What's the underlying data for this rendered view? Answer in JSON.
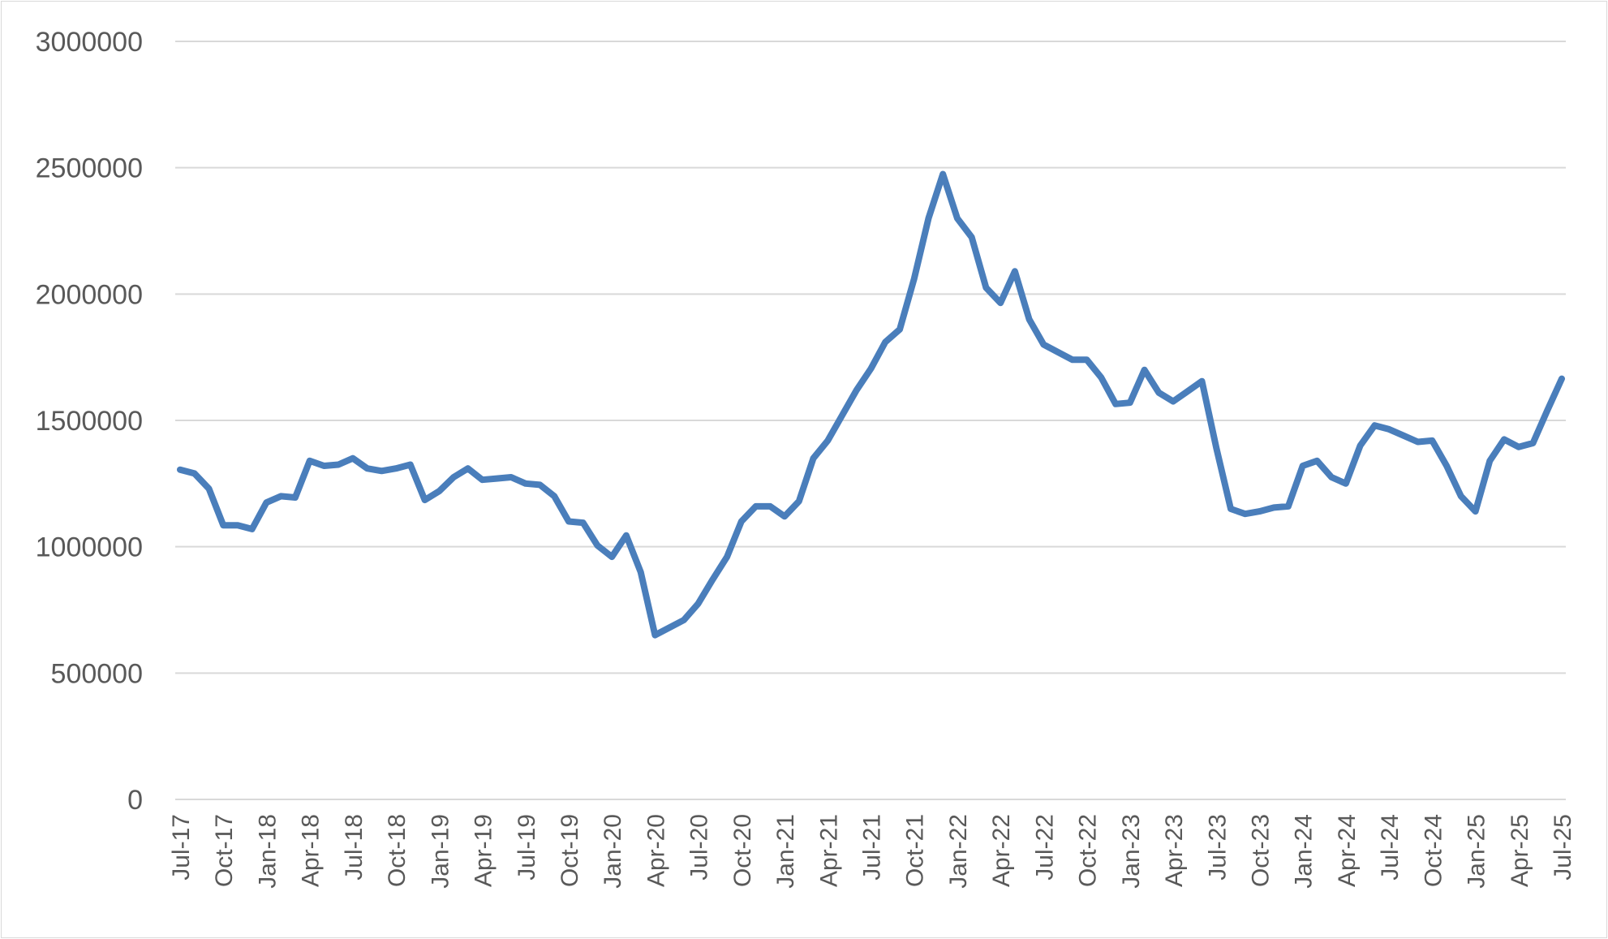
{
  "chart_data": {
    "type": "line",
    "title": "",
    "xlabel": "",
    "ylabel": "",
    "ylim": [
      0,
      3000000
    ],
    "yticks": [
      0,
      500000,
      1000000,
      1500000,
      2000000,
      2500000,
      3000000
    ],
    "ytick_labels": [
      "0",
      "500000",
      "1000000",
      "1500000",
      "2000000",
      "2500000",
      "3000000"
    ],
    "grid": "horizontal",
    "legend": "none",
    "line_color": "#4a7ebb",
    "x_tick_labels": [
      "Jul-17",
      "Oct-17",
      "Jan-18",
      "Apr-18",
      "Jul-18",
      "Oct-18",
      "Jan-19",
      "Apr-19",
      "Jul-19",
      "Oct-19",
      "Jan-20",
      "Apr-20",
      "Jul-20",
      "Oct-20",
      "Jan-21",
      "Apr-21",
      "Jul-21",
      "Oct-21",
      "Jan-22",
      "Apr-22",
      "Jul-22",
      "Oct-22",
      "Jan-23",
      "Apr-23",
      "Jul-23",
      "Oct-23",
      "Jan-24",
      "Apr-24",
      "Jul-24",
      "Oct-24",
      "Jan-25",
      "Apr-25",
      "Jul-25"
    ],
    "x": [
      "Jul-17",
      "Aug-17",
      "Sep-17",
      "Oct-17",
      "Nov-17",
      "Dec-17",
      "Jan-18",
      "Feb-18",
      "Mar-18",
      "Apr-18",
      "May-18",
      "Jun-18",
      "Jul-18",
      "Aug-18",
      "Sep-18",
      "Oct-18",
      "Nov-18",
      "Dec-18",
      "Jan-19",
      "Feb-19",
      "Mar-19",
      "Apr-19",
      "May-19",
      "Jun-19",
      "Jul-19",
      "Aug-19",
      "Sep-19",
      "Oct-19",
      "Nov-19",
      "Dec-19",
      "Jan-20",
      "Feb-20",
      "Mar-20",
      "Apr-20",
      "May-20",
      "Jun-20",
      "Jul-20",
      "Aug-20",
      "Sep-20",
      "Oct-20",
      "Nov-20",
      "Dec-20",
      "Jan-21",
      "Feb-21",
      "Mar-21",
      "Apr-21",
      "May-21",
      "Jun-21",
      "Jul-21",
      "Aug-21",
      "Sep-21",
      "Oct-21",
      "Nov-21",
      "Dec-21",
      "Jan-22",
      "Feb-22",
      "Mar-22",
      "Apr-22",
      "May-22",
      "Jun-22",
      "Jul-22",
      "Aug-22",
      "Sep-22",
      "Oct-22",
      "Nov-22",
      "Dec-22",
      "Jan-23",
      "Feb-23",
      "Mar-23",
      "Apr-23",
      "May-23",
      "Jun-23",
      "Jul-23",
      "Aug-23",
      "Sep-23",
      "Oct-23",
      "Nov-23",
      "Dec-23",
      "Jan-24",
      "Feb-24",
      "Mar-24",
      "Apr-24",
      "May-24",
      "Jun-24",
      "Jul-24",
      "Aug-24",
      "Sep-24",
      "Oct-24",
      "Nov-24",
      "Dec-24",
      "Jan-25",
      "Feb-25",
      "Mar-25",
      "Apr-25",
      "May-25",
      "Jun-25",
      "Jul-25"
    ],
    "series": [
      {
        "values": [
          1305000,
          1290000,
          1230000,
          1085000,
          1085000,
          1070000,
          1175000,
          1200000,
          1195000,
          1340000,
          1320000,
          1325000,
          1350000,
          1310000,
          1300000,
          1310000,
          1325000,
          1185000,
          1220000,
          1275000,
          1310000,
          1265000,
          1270000,
          1275000,
          1250000,
          1245000,
          1200000,
          1100000,
          1095000,
          1005000,
          960000,
          1045000,
          900000,
          650000,
          680000,
          710000,
          775000,
          870000,
          960000,
          1100000,
          1160000,
          1160000,
          1120000,
          1180000,
          1350000,
          1420000,
          1520000,
          1620000,
          1705000,
          1810000,
          1860000,
          2060000,
          2300000,
          2475000,
          2300000,
          2225000,
          2025000,
          1965000,
          2090000,
          1900000,
          1800000,
          1770000,
          1740000,
          1740000,
          1670000,
          1565000,
          1570000,
          1700000,
          1610000,
          1575000,
          1615000,
          1655000,
          1390000,
          1150000,
          1130000,
          1140000,
          1155000,
          1160000,
          1320000,
          1340000,
          1275000,
          1250000,
          1400000,
          1480000,
          1465000,
          1440000,
          1415000,
          1420000,
          1320000,
          1200000,
          1140000,
          1340000,
          1425000,
          1395000,
          1410000,
          1540000,
          1665000
        ]
      }
    ]
  }
}
